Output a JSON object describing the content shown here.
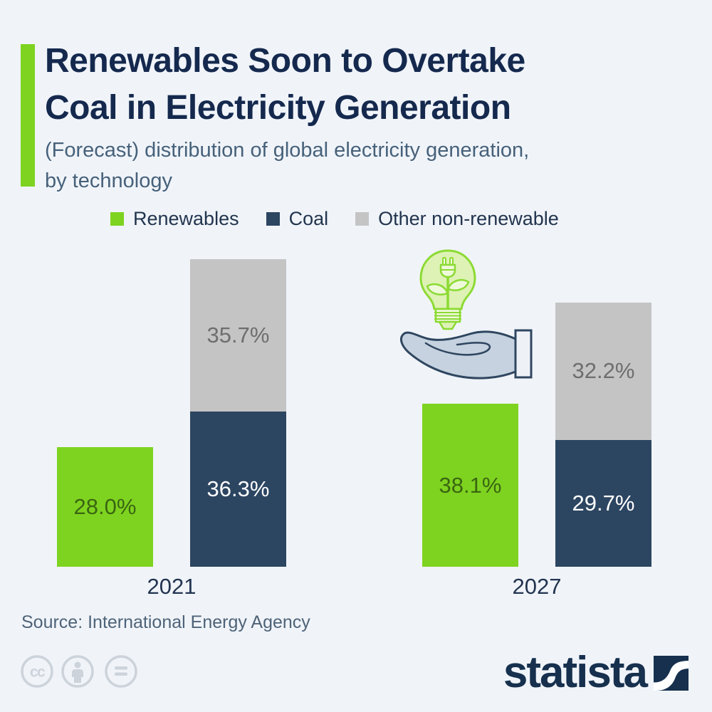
{
  "header": {
    "title_line1": "Renewables Soon to Overtake",
    "title_line2": "Coal in Electricity Generation",
    "subtitle_line1": "(Forecast) distribution of global electricity generation,",
    "subtitle_line2": "by technology"
  },
  "legend": {
    "position": "top",
    "items": [
      {
        "label": "Renewables",
        "color": "#7ed320"
      },
      {
        "label": "Coal",
        "color": "#2c4561"
      },
      {
        "label": "Other non-renewable",
        "color": "#c4c4c4"
      }
    ]
  },
  "chart_data": {
    "type": "bar",
    "variant": "grouped-with-stack",
    "unit": "percent",
    "title": "Renewables Soon to Overtake Coal in Electricity Generation",
    "subtitle": "(Forecast) distribution of global electricity generation, by technology",
    "categories": [
      "2021",
      "2027"
    ],
    "series": [
      {
        "name": "Renewables",
        "color": "#7ed320",
        "label_color": "#3a6611",
        "stack": "standalone",
        "values": [
          28.0,
          38.1
        ]
      },
      {
        "name": "Coal",
        "color": "#2c4561",
        "label_color": "#ffffff",
        "stack": "non-renewable",
        "values": [
          36.3,
          29.7
        ]
      },
      {
        "name": "Other non-renewable",
        "color": "#c4c4c4",
        "label_color": "#6e6e6e",
        "stack": "non-renewable",
        "values": [
          35.7,
          32.2
        ]
      }
    ],
    "value_label_format": "{value}%",
    "legend_position": "top",
    "gridlines": false,
    "y_axis": "hidden",
    "icon": "hand-holding-green-energy-bulb"
  },
  "footer": {
    "source": "Source: International Energy Agency",
    "license_icons": [
      "cc-icon",
      "attribution-person-icon",
      "equals-icon"
    ],
    "brand": "statista"
  },
  "colors": {
    "background": "#f0f4f9",
    "title": "#15294e",
    "subtitle": "#47617a",
    "accent_green": "#7ed320",
    "coal_navy": "#2c4561",
    "other_gray": "#c4c4c4",
    "source_text": "#4e6378",
    "license_gray": "#ccd3da",
    "brand_navy": "#16304e"
  }
}
